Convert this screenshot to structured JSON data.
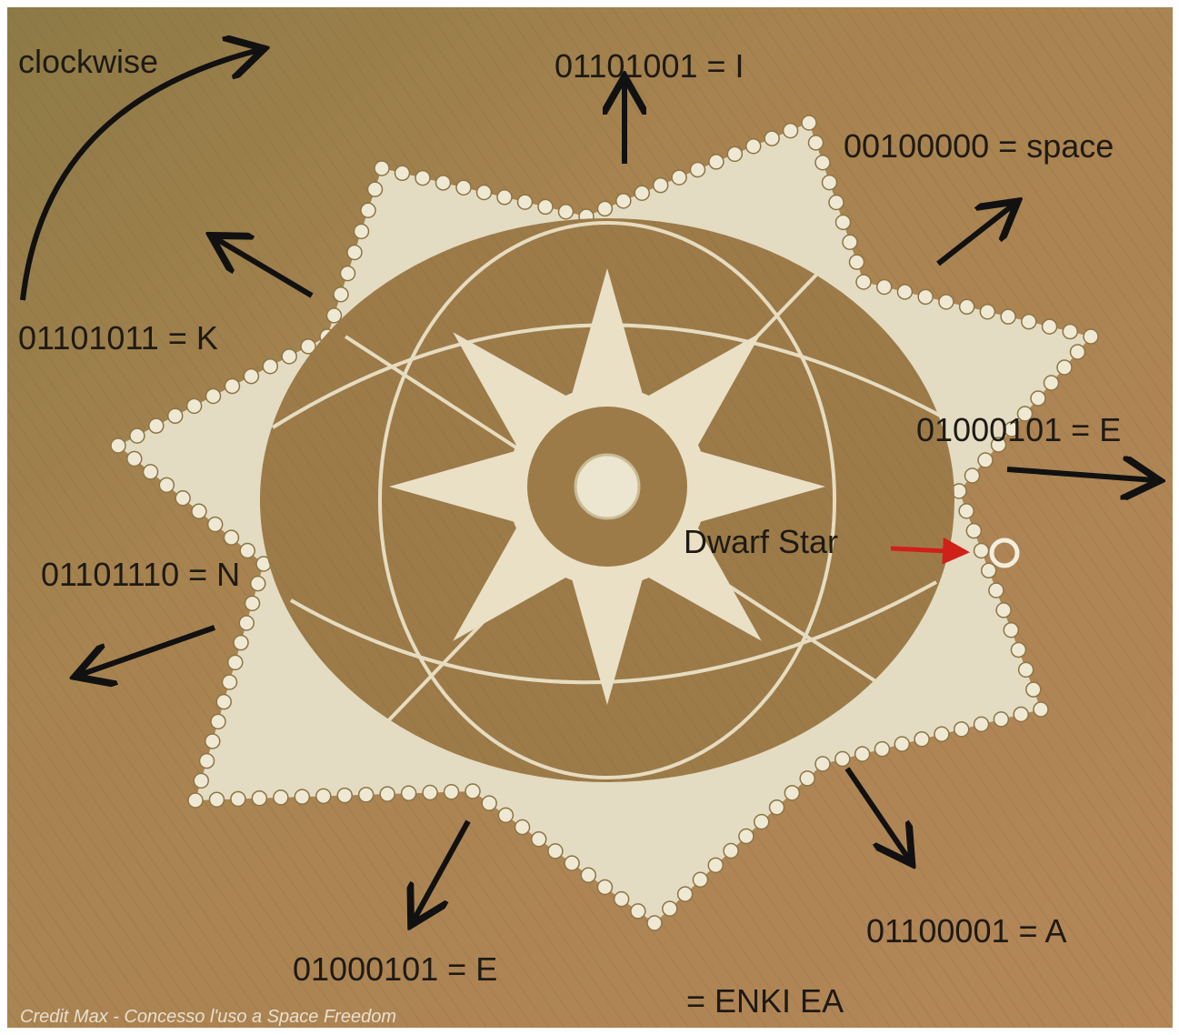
{
  "annotations": [
    {
      "text": "clockwise"
    },
    {
      "text": "01101001 = I"
    },
    {
      "text": "00100000 = space"
    },
    {
      "text": "01101011 = K"
    },
    {
      "text": "01000101 = E"
    },
    {
      "text": "Dwarf Star"
    },
    {
      "text": "01101110 = N"
    },
    {
      "text": "01100001 = A"
    },
    {
      "text": "01000101 = E"
    },
    {
      "text": "= ENKI EA"
    }
  ],
  "credit": "Credit Max - Concesso l'uso a Space Freedom"
}
